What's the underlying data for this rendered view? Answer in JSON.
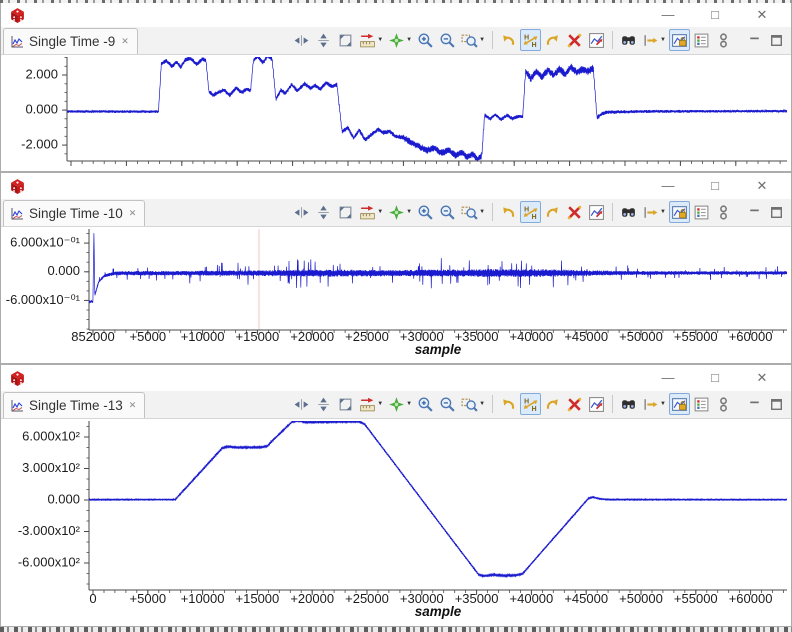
{
  "app": {
    "window_controls": {
      "minimize": "—",
      "maximize": "□",
      "close": "✕"
    },
    "tab_close_glyph": "✕"
  },
  "colors": {
    "waveform_blue": "#1a1ace",
    "axis": "#4a4a4a",
    "tick_text": "#1c1c1c",
    "cursor_line": "#eccaca",
    "app_logo_red": "#d42020",
    "toolbar_highlight_bg": "#dcebfc",
    "toolbar_highlight_border": "#84aadb"
  },
  "toolbar": {
    "dropdown_glyph": "▼",
    "icons": [
      {
        "name": "fit-width-icon"
      },
      {
        "name": "fit-height-icon"
      },
      {
        "name": "fit-window-icon"
      },
      {
        "name": "measure-cursor-icon",
        "dropdown": true
      },
      {
        "name": "add-marker-icon",
        "dropdown": true
      },
      {
        "name": "zoom-in-icon"
      },
      {
        "name": "zoom-out-icon"
      },
      {
        "name": "zoom-selection-icon",
        "dropdown": true
      },
      {
        "name": "separator"
      },
      {
        "name": "undo-zoom-icon"
      },
      {
        "name": "fit-hq-icon",
        "highlighted": true
      },
      {
        "name": "redo-zoom-icon"
      },
      {
        "name": "delete-markers-icon"
      },
      {
        "name": "chart-properties-icon"
      },
      {
        "name": "separator"
      },
      {
        "name": "search-icon"
      },
      {
        "name": "goto-sample-icon",
        "dropdown": true
      },
      {
        "name": "lock-scale-icon",
        "highlighted": true
      },
      {
        "name": "legend-icon"
      },
      {
        "name": "link-views-icon"
      },
      {
        "name": "gap"
      },
      {
        "name": "minimize-view-icon"
      },
      {
        "name": "maximize-view-icon"
      }
    ]
  },
  "windows": [
    {
      "tab_label": "Single Time -9",
      "chart_data": {
        "type": "line",
        "xlabel": "",
        "x_axis_labeled": false,
        "ylim": [
          -2.91,
          3.03
        ],
        "yticks": [
          {
            "v": 2,
            "label": "2.000"
          },
          {
            "v": 0,
            "label": "0.000"
          },
          {
            "v": -2,
            "label": "-2.000"
          }
        ],
        "y_minor_step": 0.5,
        "xlim": [
          0,
          1
        ],
        "xticks": [],
        "center": [
          [
            0,
            -0.08
          ],
          [
            0.127,
            -0.09
          ],
          [
            0.131,
            2.65
          ],
          [
            0.138,
            2.8
          ],
          [
            0.146,
            2.5
          ],
          [
            0.152,
            2.75
          ],
          [
            0.158,
            2.45
          ],
          [
            0.165,
            2.9
          ],
          [
            0.172,
            2.95
          ],
          [
            0.18,
            2.6
          ],
          [
            0.188,
            2.9
          ],
          [
            0.193,
            2.85
          ],
          [
            0.197,
            1.05
          ],
          [
            0.203,
            0.85
          ],
          [
            0.21,
            1.0
          ],
          [
            0.218,
            1.15
          ],
          [
            0.226,
            0.85
          ],
          [
            0.235,
            1.25
          ],
          [
            0.243,
            1.0
          ],
          [
            0.25,
            1.2
          ],
          [
            0.255,
            1.1
          ],
          [
            0.259,
            2.85
          ],
          [
            0.265,
            3.05
          ],
          [
            0.272,
            2.7
          ],
          [
            0.279,
            3.1
          ],
          [
            0.285,
            2.9
          ],
          [
            0.29,
            0.6
          ],
          [
            0.297,
            1.15
          ],
          [
            0.303,
            0.95
          ],
          [
            0.312,
            1.45
          ],
          [
            0.32,
            1.1
          ],
          [
            0.33,
            1.5
          ],
          [
            0.338,
            1.25
          ],
          [
            0.345,
            1.4
          ],
          [
            0.352,
            1.2
          ],
          [
            0.36,
            1.55
          ],
          [
            0.368,
            1.35
          ],
          [
            0.375,
            1.45
          ],
          [
            0.382,
            -1.25
          ],
          [
            0.39,
            -1.0
          ],
          [
            0.398,
            -1.6
          ],
          [
            0.406,
            -1.15
          ],
          [
            0.414,
            -1.7
          ],
          [
            0.423,
            -1.4
          ],
          [
            0.432,
            -1.1
          ],
          [
            0.44,
            -1.3
          ],
          [
            0.448,
            -1.2
          ],
          [
            0.456,
            -1.5
          ],
          [
            0.466,
            -1.55
          ],
          [
            0.478,
            -1.85
          ],
          [
            0.49,
            -2.1
          ],
          [
            0.5,
            -2.3
          ],
          [
            0.51,
            -2.15
          ],
          [
            0.52,
            -2.45
          ],
          [
            0.53,
            -2.3
          ],
          [
            0.54,
            -2.6
          ],
          [
            0.548,
            -2.4
          ],
          [
            0.556,
            -2.7
          ],
          [
            0.563,
            -2.5
          ],
          [
            0.57,
            -2.8
          ],
          [
            0.576,
            -2.6
          ],
          [
            0.58,
            -0.3
          ],
          [
            0.588,
            -0.5
          ],
          [
            0.595,
            -0.25
          ],
          [
            0.603,
            -0.55
          ],
          [
            0.611,
            -0.3
          ],
          [
            0.619,
            -0.5
          ],
          [
            0.627,
            -0.35
          ],
          [
            0.633,
            -0.4
          ],
          [
            0.637,
            2.25
          ],
          [
            0.644,
            1.8
          ],
          [
            0.652,
            2.2
          ],
          [
            0.66,
            1.9
          ],
          [
            0.668,
            2.3
          ],
          [
            0.676,
            2.0
          ],
          [
            0.684,
            2.35
          ],
          [
            0.692,
            2.05
          ],
          [
            0.7,
            2.45
          ],
          [
            0.708,
            2.15
          ],
          [
            0.716,
            2.35
          ],
          [
            0.724,
            2.2
          ],
          [
            0.731,
            2.4
          ],
          [
            0.736,
            -0.45
          ],
          [
            0.743,
            -0.2
          ],
          [
            0.75,
            -0.12
          ],
          [
            0.8,
            -0.08
          ],
          [
            1,
            -0.06
          ]
        ],
        "noise": [
          [
            0,
            0.08
          ],
          [
            0.127,
            0.08
          ],
          [
            0.132,
            0.13
          ],
          [
            0.46,
            0.13
          ],
          [
            0.47,
            0.2
          ],
          [
            0.578,
            0.2
          ],
          [
            0.582,
            0.11
          ],
          [
            0.634,
            0.11
          ],
          [
            0.64,
            0.22
          ],
          [
            0.732,
            0.22
          ],
          [
            0.74,
            0.12
          ],
          [
            0.78,
            0.09
          ],
          [
            1,
            0.07
          ]
        ]
      }
    },
    {
      "tab_label": "Single Time -10",
      "chart_data": {
        "type": "line",
        "xlabel": "sample",
        "x_axis_labeled": true,
        "ylim": [
          -1.218,
          0.894
        ],
        "yticks": [
          {
            "v": 0.6,
            "label": "6.000x10⁻⁰¹"
          },
          {
            "v": 0,
            "label": "0.000"
          },
          {
            "v": -0.6,
            "label": "-6.000x10⁻⁰¹"
          }
        ],
        "y_minor_step": 0.2,
        "xlim": [
          -365,
          63320
        ],
        "xticks": [
          {
            "v": 0,
            "label": "852000"
          },
          {
            "v": 5000,
            "label": "+5000"
          },
          {
            "v": 10000,
            "label": "+10000"
          },
          {
            "v": 15000,
            "label": "+15000"
          },
          {
            "v": 20000,
            "label": "+20000"
          },
          {
            "v": 25000,
            "label": "+25000"
          },
          {
            "v": 30000,
            "label": "+30000"
          },
          {
            "v": 35000,
            "label": "+35000"
          },
          {
            "v": 40000,
            "label": "+40000"
          },
          {
            "v": 45000,
            "label": "+45000"
          },
          {
            "v": 50000,
            "label": "+50000"
          },
          {
            "v": 55000,
            "label": "+55000"
          },
          {
            "v": 60000,
            "label": "+60000"
          }
        ],
        "x_minor_step": 1000,
        "cursor_sample": 15150,
        "spiky": true,
        "center": [
          [
            -365,
            -0.63
          ],
          [
            0,
            -0.62
          ],
          [
            80,
            0.88
          ],
          [
            160,
            -0.5
          ],
          [
            500,
            -0.22
          ],
          [
            1000,
            -0.09
          ],
          [
            1800,
            -0.04
          ],
          [
            3000,
            -0.03
          ],
          [
            63320,
            -0.025
          ]
        ],
        "noise": [
          [
            -365,
            0.012
          ],
          [
            200,
            0.02
          ],
          [
            1200,
            0.035
          ],
          [
            2500,
            0.045
          ],
          [
            8000,
            0.048
          ],
          [
            12000,
            0.055
          ],
          [
            15000,
            0.06
          ],
          [
            18000,
            0.07
          ],
          [
            21000,
            0.075
          ],
          [
            24000,
            0.07
          ],
          [
            27000,
            0.065
          ],
          [
            30000,
            0.07
          ],
          [
            32000,
            0.08
          ],
          [
            34000,
            0.075
          ],
          [
            36000,
            0.085
          ],
          [
            38000,
            0.08
          ],
          [
            40000,
            0.085
          ],
          [
            42000,
            0.08
          ],
          [
            44000,
            0.065
          ],
          [
            46000,
            0.055
          ],
          [
            48000,
            0.045
          ],
          [
            52000,
            0.04
          ],
          [
            56000,
            0.038
          ],
          [
            63320,
            0.036
          ]
        ]
      }
    },
    {
      "tab_label": "Single Time -13",
      "chart_data": {
        "type": "line",
        "xlabel": "sample",
        "x_axis_labeled": true,
        "ylim": [
          -857,
          752
        ],
        "yticks": [
          {
            "v": 600,
            "label": "6.000x10²"
          },
          {
            "v": 300,
            "label": "3.000x10²"
          },
          {
            "v": 0,
            "label": "0.000"
          },
          {
            "v": -300,
            "label": "-3.000x10²"
          },
          {
            "v": -600,
            "label": "-6.000x10²"
          }
        ],
        "y_minor_step": 100,
        "xlim": [
          -365,
          63320
        ],
        "xticks": [
          {
            "v": 0,
            "label": "0"
          },
          {
            "v": 5000,
            "label": "+5000"
          },
          {
            "v": 10000,
            "label": "+10000"
          },
          {
            "v": 15000,
            "label": "+15000"
          },
          {
            "v": 20000,
            "label": "+20000"
          },
          {
            "v": 25000,
            "label": "+25000"
          },
          {
            "v": 30000,
            "label": "+30000"
          },
          {
            "v": 35000,
            "label": "+35000"
          },
          {
            "v": 40000,
            "label": "+40000"
          },
          {
            "v": 45000,
            "label": "+45000"
          },
          {
            "v": 50000,
            "label": "+50000"
          },
          {
            "v": 55000,
            "label": "+55000"
          },
          {
            "v": 60000,
            "label": "+60000"
          }
        ],
        "x_minor_step": 1000,
        "spiky": false,
        "center": [
          [
            -365,
            3
          ],
          [
            7500,
            4
          ],
          [
            11800,
            495
          ],
          [
            12300,
            508
          ],
          [
            13200,
            500
          ],
          [
            15300,
            502
          ],
          [
            15900,
            512
          ],
          [
            16300,
            558
          ],
          [
            18200,
            748
          ],
          [
            18800,
            755
          ],
          [
            19400,
            740
          ],
          [
            21500,
            745
          ],
          [
            24300,
            748
          ],
          [
            24800,
            720
          ],
          [
            27000,
            417
          ],
          [
            30000,
            3
          ],
          [
            33000,
            -411
          ],
          [
            35200,
            -712
          ],
          [
            35700,
            -724
          ],
          [
            36500,
            -712
          ],
          [
            37500,
            -720
          ],
          [
            38600,
            -716
          ],
          [
            39200,
            -702
          ],
          [
            41000,
            -486
          ],
          [
            43000,
            -248
          ],
          [
            45200,
            15
          ],
          [
            45600,
            28
          ],
          [
            46200,
            12
          ],
          [
            46900,
            4
          ],
          [
            63320,
            3
          ]
        ],
        "noise": [
          [
            -365,
            5
          ],
          [
            7000,
            4
          ],
          [
            8000,
            7
          ],
          [
            12000,
            8
          ],
          [
            16000,
            7
          ],
          [
            19000,
            8
          ],
          [
            24000,
            8
          ],
          [
            26000,
            5
          ],
          [
            34000,
            5
          ],
          [
            35500,
            8
          ],
          [
            39000,
            8
          ],
          [
            40000,
            5
          ],
          [
            45000,
            6
          ],
          [
            46500,
            5
          ],
          [
            63320,
            4
          ]
        ]
      }
    }
  ]
}
